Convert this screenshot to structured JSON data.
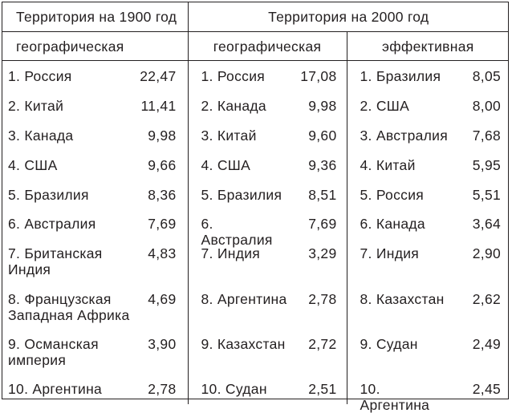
{
  "header": {
    "territory_1900": "Территория на 1900 год",
    "territory_2000": "Территория на 2000 год",
    "geo_1900": "географическая",
    "geo_2000": "географическая",
    "eff_2000": "эффективная"
  },
  "rows": [
    {
      "a_name": "1. Россия",
      "a_val": "22,47",
      "b_name": "1. Россия",
      "b_val": "17,08",
      "c_name": "1. Бразилия",
      "c_val": "8,05"
    },
    {
      "a_name": "2. Китай",
      "a_val": "11,41",
      "b_name": "2. Канада",
      "b_val": "9,98",
      "c_name": "2. США",
      "c_val": "8,00"
    },
    {
      "a_name": "3. Канада",
      "a_val": "9,98",
      "b_name": "3. Китай",
      "b_val": "9,60",
      "c_name": "3. Австралия",
      "c_val": "7,68"
    },
    {
      "a_name": "4. США",
      "a_val": "9,66",
      "b_name": "4. США",
      "b_val": "9,36",
      "c_name": "4. Китай",
      "c_val": "5,95"
    },
    {
      "a_name": "5. Бразилия",
      "a_val": "8,36",
      "b_name": "5. Бразилия",
      "b_val": "8,51",
      "c_name": "5. Россия",
      "c_val": "5,51"
    },
    {
      "a_name": "6. Австралия",
      "a_val": "7,69",
      "b_name": "6. Австралия",
      "b_val": "7,69",
      "c_name": "6. Канада",
      "c_val": "3,64"
    },
    {
      "a_name": "7. Британская Индия",
      "a_val": "4,83",
      "b_name": "7. Индия",
      "b_val": "3,29",
      "c_name": "7. Индия",
      "c_val": "2,90"
    },
    {
      "a_name": "8. Французская Западная Африка",
      "a_val": "4,69",
      "b_name": "8. Аргентина",
      "b_val": "2,78",
      "c_name": "8. Казахстан",
      "c_val": "2,62"
    },
    {
      "a_name": "9. Османская империя",
      "a_val": "3,90",
      "b_name": "9. Казахстан",
      "b_val": "2,72",
      "c_name": "9. Судан",
      "c_val": "2,49"
    },
    {
      "a_name": "10. Аргентина",
      "a_val": "2,78",
      "b_name": "10. Судан",
      "b_val": "2,51",
      "c_name": "10. Аргентина",
      "c_val": "2,45"
    }
  ]
}
